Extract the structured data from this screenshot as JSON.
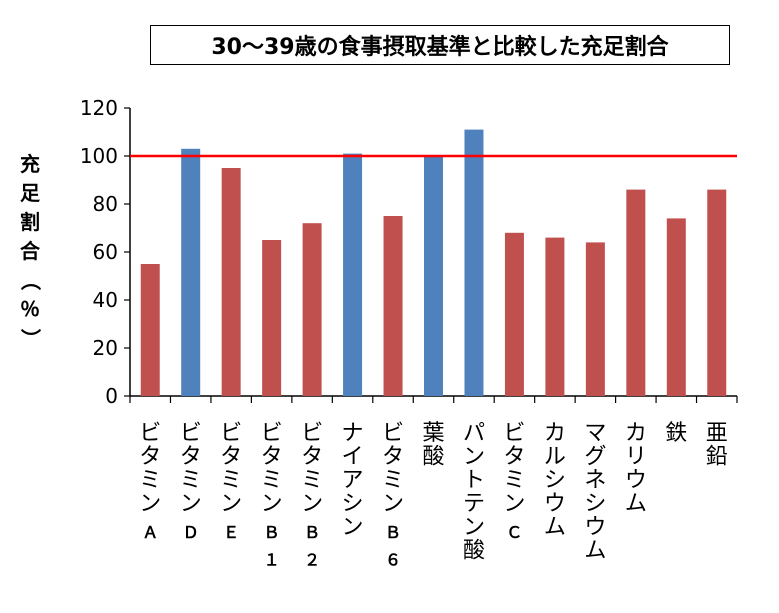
{
  "chart_data": {
    "type": "bar",
    "title": "30～39歳の食事摂取基準と比較した充足割合",
    "ylabel": "充足割合（％）",
    "ylim": [
      0,
      120
    ],
    "yticks": [
      "0",
      "20",
      "40",
      "60",
      "80",
      "100",
      "120"
    ],
    "reference_line": {
      "value": 100,
      "color": "#ff0000"
    },
    "categories": [
      "ビタミンＡ",
      "ビタミンＤ",
      "ビタミンＥ",
      "ビタミンＢ１",
      "ビタミンＢ２",
      "ナイアシン",
      "ビタミンＢ６",
      "葉酸",
      "パントテン酸",
      "ビタミンＣ",
      "カルシウム",
      "マグネシウム",
      "カリウム",
      "鉄",
      "亜鉛"
    ],
    "values": [
      55,
      103,
      95,
      65,
      72,
      101,
      75,
      100,
      111,
      68,
      66,
      64,
      86,
      74,
      86
    ],
    "bar_colors": [
      "#c0504d",
      "#4f81bd",
      "#c0504d",
      "#c0504d",
      "#c0504d",
      "#4f81bd",
      "#c0504d",
      "#4f81bd",
      "#4f81bd",
      "#c0504d",
      "#c0504d",
      "#c0504d",
      "#c0504d",
      "#c0504d",
      "#c0504d"
    ],
    "grid": false,
    "legend": "none"
  }
}
